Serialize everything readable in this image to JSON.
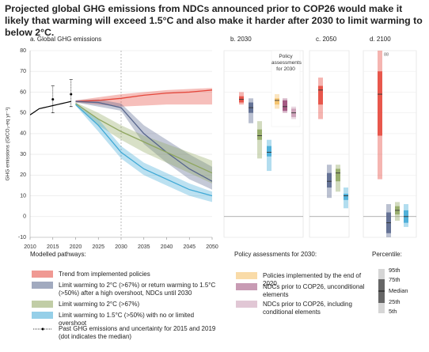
{
  "title": "Projected global GHG emissions from NDCs announced prior to COP26 would make it likely that warming will exceed 1.5°C and also make it harder after 2030 to limit warming to below 2°C.",
  "chart_data": [
    {
      "type": "line",
      "title": "a. Global GHG emissions",
      "ylabel": "GHG emissions (GtCO₂-eq yr⁻¹)",
      "xlim": [
        2010,
        2050
      ],
      "ylim": [
        -10,
        80
      ],
      "xticks": [
        2010,
        2015,
        2020,
        2025,
        2030,
        2035,
        2040,
        2045,
        2050
      ],
      "yticks": [
        -10,
        0,
        10,
        20,
        30,
        40,
        50,
        60,
        70,
        80
      ],
      "grid": true,
      "vline": 2030,
      "legend_title": "Modelled pathways:",
      "history": {
        "name": "Past GHG emissions and uncertainty for 2015 and 2019 (dot indicates the median)",
        "color": "#000000",
        "x": [
          2010,
          2011,
          2012,
          2013,
          2014,
          2015,
          2016,
          2017,
          2018,
          2019
        ],
        "values": [
          49,
          50.5,
          52,
          52.5,
          53,
          53.5,
          54,
          54.5,
          55,
          55.5
        ]
      },
      "uncertainty": {
        "x": [
          2015,
          2019
        ],
        "median": [
          56.5,
          59
        ],
        "low": [
          50,
          53
        ],
        "high": [
          63,
          66
        ]
      },
      "series": [
        {
          "name": "Trend from implemented policies",
          "color": "#e5473b",
          "x": [
            2020,
            2025,
            2030,
            2035,
            2040,
            2045,
            2050
          ],
          "values": [
            55.5,
            56,
            57,
            58.5,
            59.5,
            60,
            61
          ],
          "low": [
            55,
            54,
            53,
            53.5,
            54,
            54,
            54
          ],
          "high": [
            56,
            57.5,
            59,
            60,
            61,
            61.5,
            62
          ]
        },
        {
          "name": "Limit warming to 2°C (>67%) or return warming to 1.5°C (>50%) after a high overshoot, NDCs until 2030",
          "color": "#56658c",
          "x": [
            2020,
            2025,
            2030,
            2035,
            2040,
            2045,
            2050
          ],
          "values": [
            55.5,
            55,
            52.5,
            40,
            31,
            23,
            17
          ],
          "low": [
            55,
            53,
            51,
            35,
            26,
            18,
            13
          ],
          "high": [
            56,
            56.5,
            54.5,
            44,
            37,
            30,
            24
          ]
        },
        {
          "name": "Limit warming to 2°C (>67%)",
          "color": "#8fa65f",
          "x": [
            2020,
            2025,
            2030,
            2035,
            2040,
            2045,
            2050
          ],
          "values": [
            54.5,
            47,
            41,
            36,
            31,
            26,
            21
          ],
          "low": [
            54,
            44,
            37,
            31,
            26,
            21,
            16
          ],
          "high": [
            55,
            50,
            44,
            39,
            35,
            31,
            27
          ]
        },
        {
          "name": "Limit warming to 1.5°C (>50%) with no or limited overshoot",
          "color": "#3fa9d6",
          "x": [
            2020,
            2025,
            2030,
            2035,
            2040,
            2045,
            2050
          ],
          "values": [
            54,
            44,
            31,
            23,
            18,
            13,
            10
          ],
          "low": [
            53.5,
            41,
            28,
            20,
            15,
            10,
            7
          ],
          "high": [
            55,
            47,
            34,
            26,
            21,
            16,
            12
          ]
        }
      ]
    },
    {
      "type": "box",
      "title": "b. 2030",
      "inset": "Policy assessments for 2030",
      "legend_title": "Policy assessments for 2030:",
      "boxes": [
        {
          "color": "#e5473b",
          "p5": 54,
          "p25": 55,
          "median": 56.5,
          "p75": 58,
          "p95": 60
        },
        {
          "color": "#56658c",
          "p5": 45,
          "p25": 50,
          "median": 52.5,
          "p75": 55,
          "p95": 57
        },
        {
          "color": "#8fa65f",
          "p5": 28,
          "p25": 37,
          "median": 39,
          "p75": 42,
          "p95": 46
        },
        {
          "color": "#3fa9d6",
          "p5": 22,
          "p25": 29,
          "median": 31,
          "p75": 34,
          "p95": 37
        },
        {
          "name": "Policies implemented by the end of 2020",
          "color": "#f5bf62",
          "p5": 52,
          "p25": 54,
          "median": 56,
          "p75": 57,
          "p95": 59
        },
        {
          "name": "NDCs prior to COP26, unconditional elements",
          "color": "#9c4a78",
          "p5": 50,
          "p25": 51,
          "median": 53,
          "p75": 56,
          "p95": 57
        },
        {
          "name": "NDCs prior to COP26, including conditional elements",
          "color": "#c99ab3",
          "p5": 47,
          "p25": 48,
          "median": 50,
          "p75": 52,
          "p95": 53
        }
      ]
    },
    {
      "type": "box",
      "title": "c. 2050",
      "boxes": [
        {
          "color": "#e5473b",
          "p5": 47,
          "p25": 54,
          "median": 61,
          "p75": 63,
          "p95": 67
        },
        {
          "color": "#56658c",
          "p5": 9,
          "p25": 14,
          "median": 17,
          "p75": 21,
          "p95": 25
        },
        {
          "color": "#8fa65f",
          "p5": 12,
          "p25": 17,
          "median": 21,
          "p75": 23,
          "p95": 25
        },
        {
          "color": "#3fa9d6",
          "p5": 4,
          "p25": 8,
          "median": 10,
          "p75": 11,
          "p95": 14
        }
      ]
    },
    {
      "type": "box",
      "title": "d. 2100",
      "boxes": [
        {
          "color": "#e5473b",
          "p5": 18,
          "p25": 39,
          "median": 59,
          "p75": 70,
          "p95": 88,
          "p95_label": "88"
        },
        {
          "color": "#56658c",
          "p5": -11,
          "p25": -8,
          "median": -3,
          "p75": 2,
          "p95": 6
        },
        {
          "color": "#8fa65f",
          "p5": -2,
          "p25": 1,
          "median": 3,
          "p75": 5,
          "p95": 7
        },
        {
          "color": "#3fa9d6",
          "p5": -5,
          "p25": -3,
          "median": 0,
          "p75": 3,
          "p95": 6
        }
      ]
    }
  ],
  "percentile": {
    "title": "Percentile:",
    "labels": [
      "95th",
      "75th",
      "Median",
      "25th",
      "5th"
    ]
  }
}
